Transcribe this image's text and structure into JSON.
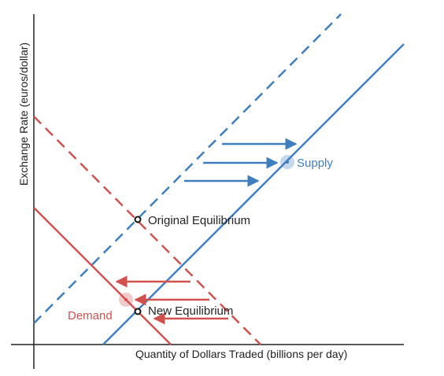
{
  "axes": {
    "y_label": "Exchange Rate (euros/dollar)",
    "x_label": "Quantity of Dollars Traded (billions per day)"
  },
  "curves": {
    "supply": {
      "label": "Supply",
      "color": "#3f7fbf"
    },
    "demand": {
      "label": "Demand",
      "color": "#d0524f"
    }
  },
  "points": {
    "original": "Original Equilibrium",
    "new": "New Equilibrium"
  },
  "shifts": {
    "supply": "right",
    "demand": "left"
  }
}
